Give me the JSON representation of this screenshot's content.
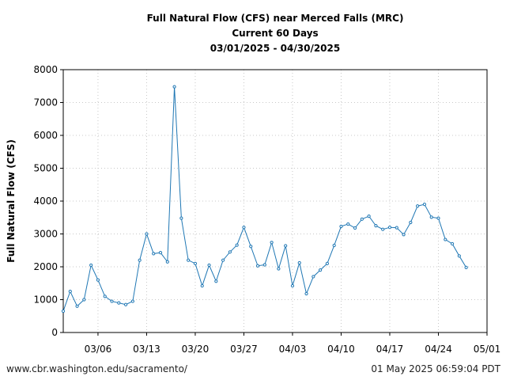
{
  "chart_data": {
    "type": "line",
    "title_lines": [
      "Full Natural Flow (CFS) near Merced Falls (MRC)",
      "Current 60 Days",
      "03/01/2025 - 04/30/2025"
    ],
    "ylabel": "Full Natural Flow (CFS)",
    "xlabel": "",
    "xlim": [
      "2025-03-01",
      "2025-05-01"
    ],
    "ylim": [
      0,
      8000
    ],
    "yticks": [
      0,
      1000,
      2000,
      3000,
      4000,
      5000,
      6000,
      7000,
      8000
    ],
    "xticks": [
      {
        "date": "2025-03-06",
        "label": "03/06"
      },
      {
        "date": "2025-03-13",
        "label": "03/13"
      },
      {
        "date": "2025-03-20",
        "label": "03/20"
      },
      {
        "date": "2025-03-27",
        "label": "03/27"
      },
      {
        "date": "2025-04-03",
        "label": "04/03"
      },
      {
        "date": "2025-04-10",
        "label": "04/10"
      },
      {
        "date": "2025-04-17",
        "label": "04/17"
      },
      {
        "date": "2025-04-24",
        "label": "04/24"
      },
      {
        "date": "2025-05-01",
        "label": "05/01"
      }
    ],
    "grid": true,
    "legend": "none",
    "series": [
      {
        "color": "#1f77b4",
        "x": [
          "2025-03-01",
          "2025-03-02",
          "2025-03-03",
          "2025-03-04",
          "2025-03-05",
          "2025-03-06",
          "2025-03-07",
          "2025-03-08",
          "2025-03-09",
          "2025-03-10",
          "2025-03-11",
          "2025-03-12",
          "2025-03-13",
          "2025-03-14",
          "2025-03-15",
          "2025-03-16",
          "2025-03-17",
          "2025-03-18",
          "2025-03-19",
          "2025-03-20",
          "2025-03-21",
          "2025-03-22",
          "2025-03-23",
          "2025-03-24",
          "2025-03-25",
          "2025-03-26",
          "2025-03-27",
          "2025-03-28",
          "2025-03-29",
          "2025-03-30",
          "2025-03-31",
          "2025-04-01",
          "2025-04-02",
          "2025-04-03",
          "2025-04-04",
          "2025-04-05",
          "2025-04-06",
          "2025-04-07",
          "2025-04-08",
          "2025-04-09",
          "2025-04-10",
          "2025-04-11",
          "2025-04-12",
          "2025-04-13",
          "2025-04-14",
          "2025-04-15",
          "2025-04-16",
          "2025-04-17",
          "2025-04-18",
          "2025-04-19",
          "2025-04-20",
          "2025-04-21",
          "2025-04-22",
          "2025-04-23",
          "2025-04-24",
          "2025-04-25",
          "2025-04-26",
          "2025-04-27",
          "2025-04-28"
        ],
        "y": [
          650,
          1250,
          800,
          1000,
          2050,
          1600,
          1100,
          950,
          900,
          850,
          950,
          2200,
          3000,
          2400,
          2430,
          2150,
          7480,
          3480,
          2200,
          2100,
          1420,
          2050,
          1560,
          2200,
          2450,
          2660,
          3200,
          2620,
          2030,
          2060,
          2740,
          1940,
          2640,
          1420,
          2120,
          1180,
          1700,
          1900,
          2100,
          2650,
          3230,
          3300,
          3180,
          3450,
          3540,
          3250,
          3140,
          3200,
          3190,
          2980,
          3350,
          3850,
          3900,
          3510,
          3480,
          2830,
          2700,
          2330,
          1980
        ]
      }
    ]
  },
  "footer": {
    "url": "www.cbr.washington.edu/sacramento/",
    "timestamp": "01 May 2025 06:59:04 PDT"
  }
}
